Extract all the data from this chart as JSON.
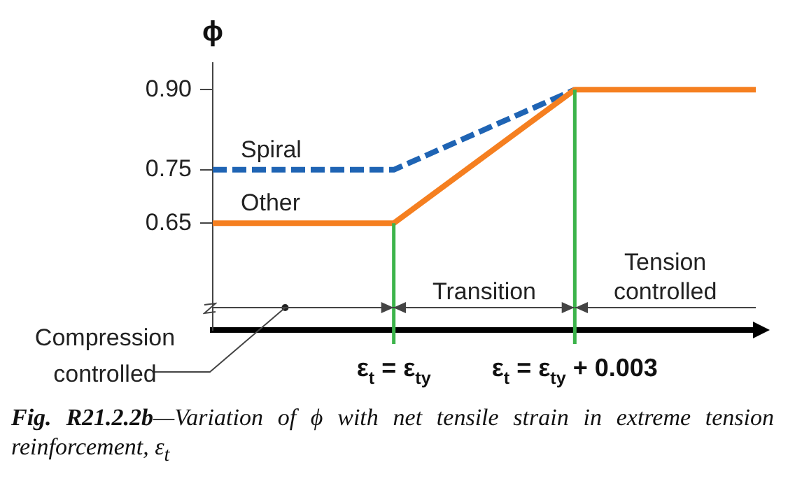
{
  "chart_data": {
    "type": "line",
    "ylabel": "ϕ",
    "categories": [
      null,
      "ε$_{t}$ = ε$_{ty}$",
      "ε$_{t}$ = ε$_{ty}$ + 0.003",
      null
    ],
    "ylim": [
      0.45,
      0.95
    ],
    "yticks": [
      0.65,
      0.75,
      {
        "value": 0.9,
        "label": "0.90"
      }
    ],
    "series": [
      {
        "name": "Spiral",
        "color": "#1f64b4",
        "line_style": "dashed",
        "values": [
          0.75,
          0.75,
          0.9,
          null
        ]
      },
      {
        "name": "Other",
        "color": "#f57f20",
        "line_style": "solid",
        "values": [
          0.65,
          0.65,
          0.9,
          0.9
        ]
      }
    ],
    "ref_lines": [
      {
        "axis": "x",
        "value": "ε$_{t}$ = ε$_{ty}$",
        "color": "#3cb44b"
      },
      {
        "axis": "x",
        "value": "ε$_{t}$ = ε$_{ty}$ + 0.003",
        "color": "#3cb44b"
      }
    ],
    "annotations": [
      "Compression controlled",
      "Transition",
      "Tension controlled",
      "Fig. R21.2.2b—Variation of ϕ with net tensile strain in extreme tension reinforcement, ε$_{t}$"
    ],
    "marker": "none",
    "grid": false,
    "legend": false
  }
}
